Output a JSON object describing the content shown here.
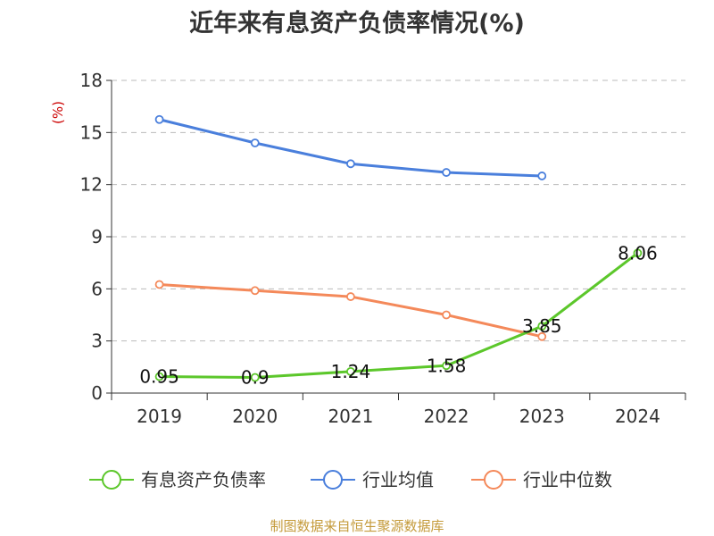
{
  "chart_data": {
    "type": "line",
    "title": "近年来有息资产负债率情况(%)",
    "ylabel": "(%)",
    "xlabel": "",
    "categories": [
      "2019",
      "2020",
      "2021",
      "2022",
      "2023",
      "2024"
    ],
    "ylim": [
      0,
      18
    ],
    "yticks": [
      0,
      3,
      6,
      9,
      12,
      15,
      18
    ],
    "grid": true,
    "legend_position": "bottom",
    "series": [
      {
        "name": "有息资产负债率",
        "color": "#5cc72b",
        "values": [
          0.95,
          0.9,
          1.24,
          1.58,
          3.85,
          8.06
        ],
        "labels": [
          "0.95",
          "0.9",
          "1.24",
          "1.58",
          "3.85",
          "8.06"
        ]
      },
      {
        "name": "行业均值",
        "color": "#4a7fdc",
        "values": [
          15.75,
          14.4,
          13.2,
          12.7,
          12.5,
          null
        ]
      },
      {
        "name": "行业中位数",
        "color": "#f4895a",
        "values": [
          6.25,
          5.9,
          5.55,
          4.5,
          3.25,
          null
        ]
      }
    ]
  },
  "source": "制图数据来自恒生聚源数据库"
}
